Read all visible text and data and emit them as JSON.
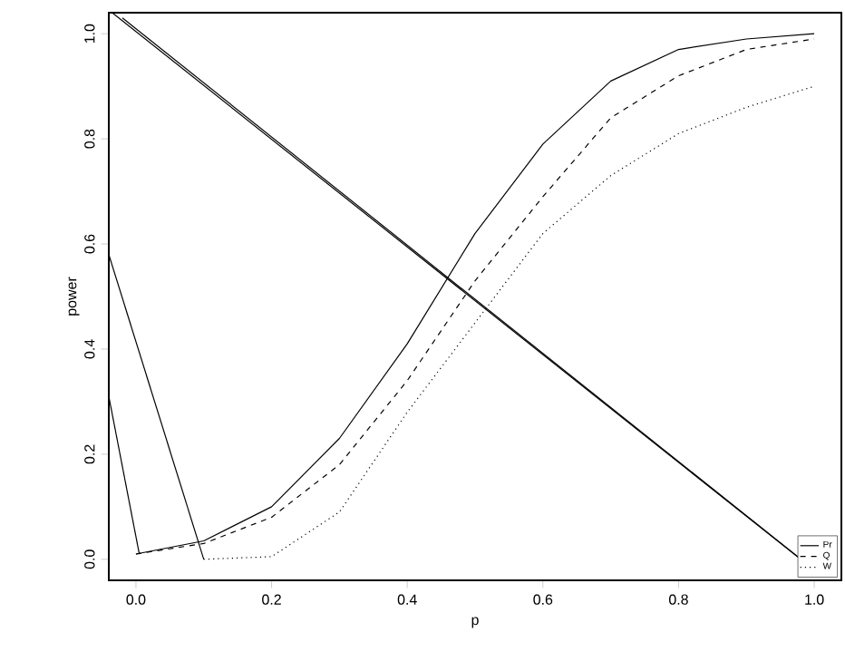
{
  "chart_data": {
    "type": "line",
    "xlabel": "p",
    "ylabel": "power",
    "xlim": [
      -0.04,
      1.04
    ],
    "ylim": [
      -0.04,
      1.04
    ],
    "xticks": [
      {
        "value": 0,
        "label": "0.0"
      },
      0.2,
      0.4,
      0.6,
      0.8,
      {
        "value": 1,
        "label": "1.0"
      }
    ],
    "yticks": [
      {
        "value": 0,
        "label": "0.0"
      },
      0.2,
      0.4,
      0.6,
      0.8,
      {
        "value": 1,
        "label": "1.0"
      }
    ],
    "grid": false,
    "legend": "bottom right",
    "series": [
      {
        "name": "Pr",
        "color": "#000000",
        "line_style": "solid",
        "x": [
          0,
          0.1,
          0.2,
          0.3,
          0.4,
          0.5,
          0.6,
          0.7,
          0.8,
          0.9,
          1.0
        ],
        "values": [
          0.01,
          0.035,
          0.1,
          0.23,
          0.41,
          0.62,
          0.79,
          0.91,
          0.97,
          0.99,
          1.0
        ]
      },
      {
        "name": "Q",
        "color": "#000000",
        "line_style": "dashed",
        "x": [
          0,
          0.1,
          0.2,
          0.3,
          0.4,
          0.5,
          0.6,
          0.7,
          0.8,
          0.9,
          1.0
        ],
        "values": [
          0.01,
          0.03,
          0.08,
          0.18,
          0.34,
          0.53,
          0.69,
          0.84,
          0.92,
          0.97,
          0.99
        ]
      },
      {
        "name": "W",
        "color": "#000000",
        "line_style": "dotted",
        "x": [
          0.1,
          0.2,
          0.3,
          0.4,
          0.5,
          0.6,
          0.7,
          0.8,
          0.9,
          1.0
        ],
        "values": [
          0.0,
          0.005,
          0.09,
          0.28,
          0.45,
          0.62,
          0.73,
          0.81,
          0.86,
          0.9
        ]
      },
      {
        "color": "#000000",
        "line_style": "solid",
        "x": [
          -0.035,
          0.98
        ],
        "values": [
          1.04,
          0.0
        ]
      },
      {
        "color": "#000000",
        "line_style": "solid",
        "x": [
          -0.02,
          1.0
        ],
        "values": [
          1.03,
          -0.02
        ]
      },
      {
        "color": "#000000",
        "line_style": "solid",
        "x": [
          -0.04,
          0.005
        ],
        "values": [
          0.31,
          0.01
        ]
      },
      {
        "color": "#000000",
        "line_style": "solid",
        "x": [
          -0.04,
          0.1
        ],
        "values": [
          0.58,
          0.0
        ]
      }
    ]
  }
}
